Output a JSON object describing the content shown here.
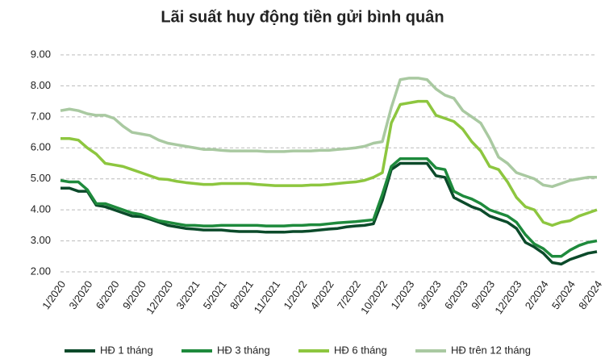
{
  "chart_data": {
    "type": "line",
    "title": "Lãi suất huy động tiền gửi bình quân",
    "categories": [
      "1/2020",
      null,
      null,
      "3/2020",
      null,
      null,
      "6/2020",
      null,
      null,
      "9/2020",
      null,
      null,
      "12/2020",
      null,
      null,
      "3/2021",
      null,
      null,
      "5/2021",
      null,
      null,
      "8/2021",
      null,
      null,
      "11/2021",
      null,
      null,
      "1/2022",
      null,
      null,
      "4/2022",
      null,
      null,
      "7/2022",
      null,
      null,
      "10/2022",
      null,
      null,
      "1/2023",
      null,
      null,
      "3/2023",
      null,
      null,
      "6/2023",
      null,
      null,
      "9/2023",
      null,
      null,
      "12/2023",
      null,
      null,
      "2/2024",
      null,
      null,
      "5/2024",
      null,
      null,
      "8/2024"
    ],
    "series": [
      {
        "name": "HĐ 1 tháng",
        "color": "#0b4a2a",
        "values": [
          4.7,
          4.7,
          4.6,
          4.6,
          4.15,
          4.1,
          4.0,
          3.9,
          3.8,
          3.78,
          3.7,
          3.6,
          3.5,
          3.45,
          3.4,
          3.38,
          3.35,
          3.35,
          3.35,
          3.32,
          3.3,
          3.3,
          3.3,
          3.28,
          3.28,
          3.28,
          3.3,
          3.3,
          3.32,
          3.35,
          3.38,
          3.4,
          3.45,
          3.48,
          3.5,
          3.55,
          4.3,
          5.3,
          5.5,
          5.5,
          5.5,
          5.5,
          5.1,
          5.05,
          4.4,
          4.25,
          4.1,
          4.0,
          3.8,
          3.7,
          3.6,
          3.4,
          2.95,
          2.8,
          2.6,
          2.3,
          2.25,
          2.4,
          2.5,
          2.6,
          2.65
        ]
      },
      {
        "name": "HĐ 3 tháng",
        "color": "#1e8a3c",
        "values": [
          4.95,
          4.9,
          4.9,
          4.65,
          4.2,
          4.2,
          4.1,
          4.0,
          3.9,
          3.85,
          3.75,
          3.65,
          3.6,
          3.55,
          3.5,
          3.5,
          3.48,
          3.48,
          3.5,
          3.5,
          3.5,
          3.5,
          3.5,
          3.48,
          3.48,
          3.48,
          3.5,
          3.5,
          3.52,
          3.52,
          3.55,
          3.58,
          3.6,
          3.62,
          3.65,
          3.68,
          4.5,
          5.4,
          5.65,
          5.65,
          5.65,
          5.65,
          5.35,
          5.3,
          4.6,
          4.45,
          4.35,
          4.2,
          4.0,
          3.9,
          3.8,
          3.6,
          3.2,
          2.9,
          2.75,
          2.5,
          2.5,
          2.7,
          2.85,
          2.95,
          3.0
        ]
      },
      {
        "name": "HĐ 6 tháng",
        "color": "#8dc63f",
        "values": [
          6.3,
          6.3,
          6.25,
          6.0,
          5.8,
          5.5,
          5.45,
          5.4,
          5.3,
          5.2,
          5.1,
          5.0,
          4.98,
          4.92,
          4.88,
          4.85,
          4.82,
          4.82,
          4.85,
          4.85,
          4.85,
          4.85,
          4.82,
          4.8,
          4.78,
          4.78,
          4.78,
          4.78,
          4.8,
          4.8,
          4.82,
          4.85,
          4.88,
          4.9,
          4.95,
          5.05,
          5.2,
          6.8,
          7.4,
          7.45,
          7.5,
          7.5,
          7.05,
          6.95,
          6.85,
          6.6,
          6.2,
          5.9,
          5.4,
          5.3,
          4.9,
          4.4,
          4.1,
          4.0,
          3.6,
          3.5,
          3.6,
          3.65,
          3.8,
          3.9,
          4.0
        ]
      },
      {
        "name": "HĐ trên 12 tháng",
        "color": "#a9c9a1",
        "values": [
          7.2,
          7.25,
          7.2,
          7.1,
          7.05,
          7.05,
          6.95,
          6.7,
          6.5,
          6.45,
          6.4,
          6.25,
          6.15,
          6.1,
          6.05,
          6.0,
          5.95,
          5.95,
          5.92,
          5.9,
          5.9,
          5.9,
          5.9,
          5.88,
          5.88,
          5.88,
          5.9,
          5.9,
          5.9,
          5.92,
          5.92,
          5.95,
          5.97,
          6.0,
          6.05,
          6.15,
          6.2,
          7.3,
          8.2,
          8.25,
          8.25,
          8.2,
          7.9,
          7.7,
          7.6,
          7.2,
          7.0,
          6.8,
          6.3,
          5.7,
          5.5,
          5.2,
          5.1,
          5.0,
          4.8,
          4.75,
          4.85,
          4.95,
          5.0,
          5.05,
          5.05
        ]
      }
    ],
    "ylim": [
      2,
      9
    ],
    "yticks": [
      {
        "value": 2,
        "label": "2.00"
      },
      {
        "value": 3,
        "label": "3.00"
      },
      {
        "value": 4,
        "label": "4.00"
      },
      {
        "value": 5,
        "label": "5.00"
      },
      {
        "value": 6,
        "label": "6.00"
      },
      {
        "value": 7,
        "label": "7.00"
      },
      {
        "value": 8,
        "label": "8.00"
      },
      {
        "value": 9,
        "label": "9.00"
      }
    ],
    "grid": true,
    "legend": "bottom"
  }
}
